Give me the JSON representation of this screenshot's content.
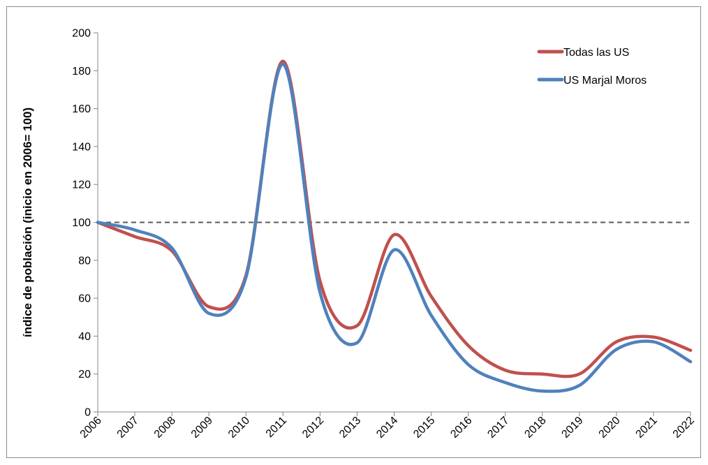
{
  "chart_data": {
    "type": "line",
    "title": "",
    "xlabel": "",
    "ylabel": "índice de población (inicio en 2006= 100)",
    "ylim": [
      0,
      200
    ],
    "yticks": [
      0,
      20,
      40,
      60,
      80,
      100,
      120,
      140,
      160,
      180,
      200
    ],
    "categories": [
      "2006",
      "2007",
      "2008",
      "2009",
      "2010",
      "2011",
      "2012",
      "2013",
      "2014",
      "2015",
      "2016",
      "2017",
      "2018",
      "2019",
      "2020",
      "2021",
      "2022"
    ],
    "grid": false,
    "legend_position": "top-right",
    "reference_line": {
      "value": 100,
      "style": "dashed",
      "color": "#595959"
    },
    "series": [
      {
        "name": "Todas las US",
        "color": "#c0504d",
        "values": [
          100,
          92.5,
          85,
          55.5,
          72,
          185,
          69,
          45.5,
          93.5,
          61,
          35,
          22,
          20,
          20,
          37,
          39.5,
          32.5
        ]
      },
      {
        "name": "US Marjal Moros",
        "color": "#4f81bd",
        "values": [
          100,
          96,
          86.5,
          52,
          71,
          183.5,
          63,
          36.5,
          85.5,
          51,
          25,
          15.5,
          11,
          14,
          33,
          37,
          26.5
        ]
      }
    ]
  }
}
